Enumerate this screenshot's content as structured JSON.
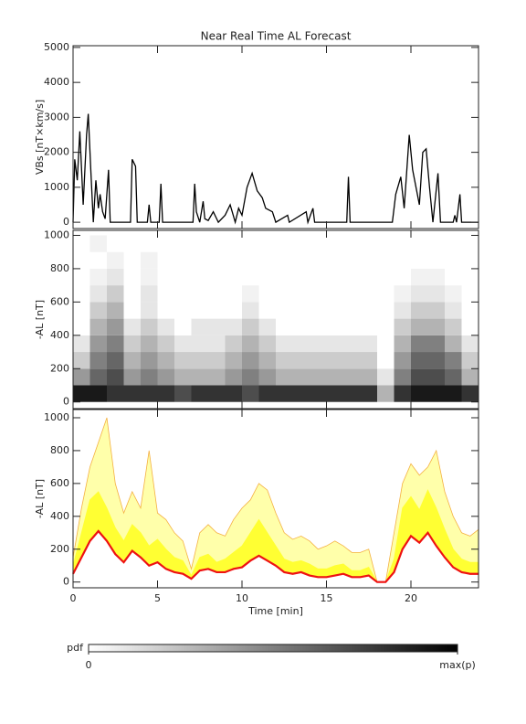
{
  "chart_data": [
    {
      "type": "line",
      "title": "Near Real Time AL Forecast",
      "ylabel": "VBs [nT×km/s]",
      "color": "#000000",
      "x": [
        0,
        0.1,
        0.25,
        0.4,
        0.6,
        0.8,
        0.9,
        1.05,
        1.2,
        1.35,
        1.5,
        1.6,
        1.75,
        1.9,
        2.1,
        2.2,
        3.4,
        3.5,
        3.7,
        3.8,
        4.4,
        4.5,
        4.6,
        5.1,
        5.2,
        5.3,
        7.1,
        7.2,
        7.3,
        7.5,
        7.7,
        7.8,
        8.0,
        8.3,
        8.6,
        9.0,
        9.3,
        9.6,
        9.8,
        10.0,
        10.3,
        10.6,
        10.9,
        11.2,
        11.4,
        11.8,
        12.0,
        12.7,
        12.8,
        13.8,
        13.9,
        14.2,
        14.3,
        16.2,
        16.3,
        16.4,
        18.9,
        19.1,
        19.4,
        19.6,
        19.9,
        20.1,
        20.3,
        20.5,
        20.7,
        20.9,
        21.1,
        21.3,
        21.6,
        21.75,
        22.5,
        22.6,
        22.7,
        22.9,
        23.0,
        24
      ],
      "values": [
        0,
        1800,
        1200,
        2600,
        500,
        2500,
        3100,
        1500,
        0,
        1200,
        400,
        800,
        300,
        100,
        1500,
        0,
        0,
        1800,
        1600,
        0,
        0,
        500,
        0,
        0,
        1100,
        0,
        0,
        1100,
        300,
        0,
        600,
        100,
        50,
        300,
        0,
        200,
        500,
        0,
        400,
        200,
        1000,
        1400,
        900,
        700,
        400,
        300,
        0,
        200,
        0,
        300,
        0,
        400,
        0,
        0,
        1300,
        0,
        0,
        800,
        1300,
        400,
        2500,
        1500,
        1000,
        500,
        2000,
        2100,
        1000,
        0,
        1400,
        0,
        0,
        200,
        0,
        800,
        0,
        0
      ],
      "xlim": [
        0,
        24
      ],
      "xticks": [
        0,
        5,
        10,
        15,
        20
      ],
      "ylim": [
        -180,
        5050
      ],
      "yticks": [
        0,
        1000,
        2000,
        3000,
        4000,
        5000
      ]
    },
    {
      "type": "heatmap",
      "ylabel": "-AL [nT]",
      "x_bins": [
        0,
        1,
        2,
        3,
        4,
        5,
        6,
        7,
        8,
        9,
        10,
        11,
        12,
        13,
        14,
        15,
        16,
        17,
        18,
        19,
        20,
        21,
        22,
        23,
        24
      ],
      "y_bins": [
        0,
        100,
        200,
        300,
        400,
        500,
        600,
        700,
        800,
        900,
        1000
      ],
      "z": [
        [
          0.9,
          0.9,
          0.8,
          0.8,
          0.8,
          0.8,
          0.7,
          0.8,
          0.8,
          0.8,
          0.7,
          0.8,
          0.8,
          0.8,
          0.8,
          0.8,
          0.8,
          0.8,
          0.3,
          0.8,
          0.9,
          0.9,
          0.9,
          0.8
        ],
        [
          0.4,
          0.6,
          0.7,
          0.4,
          0.5,
          0.4,
          0.3,
          0.3,
          0.3,
          0.4,
          0.5,
          0.4,
          0.3,
          0.3,
          0.3,
          0.3,
          0.3,
          0.3,
          0.1,
          0.5,
          0.7,
          0.7,
          0.6,
          0.3
        ],
        [
          0.2,
          0.5,
          0.6,
          0.3,
          0.4,
          0.3,
          0.2,
          0.2,
          0.2,
          0.3,
          0.4,
          0.3,
          0.2,
          0.2,
          0.2,
          0.2,
          0.2,
          0.2,
          0,
          0.4,
          0.6,
          0.6,
          0.5,
          0.2
        ],
        [
          0.1,
          0.4,
          0.5,
          0.2,
          0.3,
          0.2,
          0.1,
          0.1,
          0.1,
          0.2,
          0.3,
          0.2,
          0.1,
          0.1,
          0.1,
          0.1,
          0.1,
          0.1,
          0,
          0.3,
          0.5,
          0.5,
          0.3,
          0.1
        ],
        [
          0,
          0.3,
          0.4,
          0.1,
          0.2,
          0.1,
          0,
          0.1,
          0.1,
          0.1,
          0.2,
          0.1,
          0,
          0,
          0,
          0,
          0,
          0,
          0,
          0.2,
          0.3,
          0.3,
          0.2,
          0
        ],
        [
          0,
          0.2,
          0.3,
          0,
          0.1,
          0,
          0,
          0,
          0,
          0,
          0.1,
          0,
          0,
          0,
          0,
          0,
          0,
          0,
          0,
          0.1,
          0.2,
          0.2,
          0.1,
          0
        ],
        [
          0,
          0.1,
          0.2,
          0,
          0.1,
          0,
          0,
          0,
          0,
          0,
          0.05,
          0,
          0,
          0,
          0,
          0,
          0,
          0,
          0,
          0.05,
          0.1,
          0.1,
          0.05,
          0
        ],
        [
          0,
          0.05,
          0.1,
          0,
          0.05,
          0,
          0,
          0,
          0,
          0,
          0,
          0,
          0,
          0,
          0,
          0,
          0,
          0,
          0,
          0,
          0.05,
          0.05,
          0,
          0
        ],
        [
          0,
          0,
          0.05,
          0,
          0.05,
          0,
          0,
          0,
          0,
          0,
          0,
          0,
          0,
          0,
          0,
          0,
          0,
          0,
          0,
          0,
          0,
          0,
          0,
          0
        ],
        [
          0,
          0.05,
          0,
          0,
          0,
          0,
          0,
          0,
          0,
          0,
          0,
          0,
          0,
          0,
          0,
          0,
          0,
          0,
          0,
          0,
          0,
          0,
          0,
          0
        ]
      ],
      "xlim": [
        0,
        24
      ],
      "xticks": [
        0,
        5,
        10,
        15,
        20
      ],
      "ylim": [
        -40,
        1030
      ],
      "yticks": [
        0,
        200,
        400,
        600,
        800,
        1000
      ],
      "colorbar": {
        "label": "pdf",
        "clim": [
          0,
          1
        ],
        "cticks": [
          0,
          {
            "value": 1,
            "label": "max(p)"
          }
        ]
      }
    },
    {
      "type": "band",
      "ylabel": "-AL [nT]",
      "xlabel": "Time [min]",
      "x": [
        0,
        0.5,
        1,
        1.5,
        2,
        2.5,
        3,
        3.5,
        4,
        4.5,
        5,
        5.5,
        6,
        6.5,
        7,
        7.5,
        8,
        8.5,
        9,
        9.5,
        10,
        10.5,
        11,
        11.5,
        12,
        12.5,
        13,
        13.5,
        14,
        14.5,
        15,
        15.5,
        16,
        16.5,
        17,
        17.5,
        18,
        18.5,
        19,
        19.5,
        20,
        20.5,
        21,
        21.5,
        22,
        22.5,
        23,
        23.5,
        24
      ],
      "series": [
        {
          "color": "#ee1111",
          "values": [
            50,
            150,
            250,
            310,
            250,
            170,
            120,
            190,
            150,
            100,
            120,
            80,
            60,
            50,
            20,
            70,
            80,
            60,
            60,
            80,
            90,
            130,
            160,
            130,
            100,
            60,
            50,
            60,
            40,
            30,
            30,
            40,
            50,
            30,
            30,
            40,
            0,
            0,
            60,
            200,
            280,
            240,
            300,
            220,
            150,
            90,
            60,
            50,
            50
          ]
        },
        {
          "color": "#ffff33",
          "values": [
            100,
            300,
            500,
            550,
            450,
            330,
            250,
            350,
            300,
            220,
            260,
            200,
            150,
            130,
            40,
            150,
            170,
            120,
            140,
            180,
            220,
            300,
            380,
            300,
            220,
            140,
            120,
            130,
            110,
            80,
            80,
            100,
            110,
            70,
            70,
            90,
            0,
            0,
            140,
            450,
            520,
            440,
            560,
            450,
            320,
            200,
            140,
            120,
            120
          ]
        },
        {
          "color": "#f4b042",
          "values": [
            150,
            450,
            700,
            850,
            1000,
            600,
            420,
            550,
            450,
            800,
            420,
            380,
            300,
            250,
            80,
            300,
            350,
            300,
            280,
            380,
            450,
            500,
            600,
            560,
            420,
            300,
            260,
            280,
            250,
            200,
            220,
            250,
            220,
            180,
            180,
            200,
            0,
            0,
            300,
            600,
            720,
            650,
            700,
            800,
            550,
            400,
            300,
            280,
            320
          ]
        }
      ],
      "xlim": [
        0,
        24
      ],
      "xticks": [
        0,
        5,
        10,
        15,
        20
      ],
      "ylim": [
        -35,
        1050
      ],
      "yticks": [
        0,
        200,
        400,
        600,
        800,
        1000
      ]
    }
  ]
}
